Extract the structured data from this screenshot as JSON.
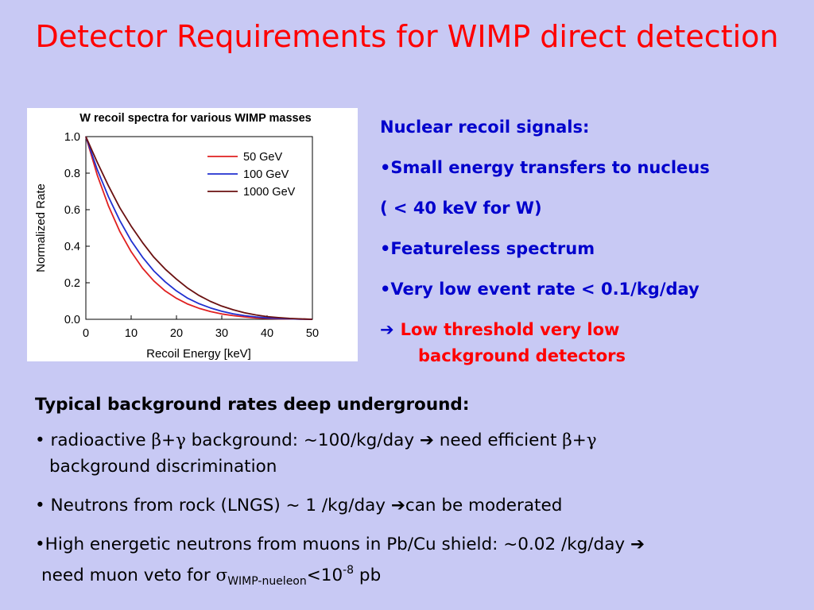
{
  "slide": {
    "title": "Detector Requirements for WIMP direct detection"
  },
  "right_panel": {
    "heading": "Nuclear recoil signals:",
    "bullets": [
      "•Small energy transfers to nucleus",
      "( < 40 keV for W)",
      "•Featureless spectrum",
      "•Very low event rate < 0.1/kg/day"
    ],
    "arrow_glyph": "➔",
    "conclusion_line1": "Low threshold  very low",
    "conclusion_line2": "background detectors"
  },
  "bottom": {
    "heading": "Typical background rates deep underground:",
    "b1_prefix": "• radioactive ",
    "beta": "β",
    "plus": "+",
    "gamma": "γ",
    "b1_mid": " background: ~100/kg/day  ",
    "arrow": "➔",
    "b1_need": " need efficient ",
    "b1_line2": "background discrimination",
    "b2_text": "• Neutrons from rock (LNGS) ~ 1 /kg/day  ",
    "b2_tail": "can be moderated",
    "b3_line1": "•High energetic neutrons from muons in Pb/Cu shield: ~0.02 /kg/day ",
    "b3_line2_prefix": "need muon veto for ",
    "sigma": "σ",
    "sigma_sub": "WIMP-nueleon",
    "lt_ten": "<10",
    "exp": "-8",
    "unit": " pb"
  },
  "colors": {
    "background": "#c8c9f4",
    "title": "#ff0000",
    "right_text": "#0000cc",
    "highlight": "#ff0000"
  },
  "chart_data": {
    "type": "line",
    "title": "W recoil spectra for various WIMP masses",
    "xlabel": "Recoil Energy [keV]",
    "ylabel": "Normalized Rate",
    "xlim": [
      0,
      50
    ],
    "ylim": [
      0,
      1.0
    ],
    "xticks": [
      0,
      10,
      20,
      30,
      40,
      50
    ],
    "yticks": [
      0.0,
      0.2,
      0.4,
      0.6,
      0.8,
      1.0
    ],
    "legend_position": "top-right",
    "x": [
      0,
      2.5,
      5,
      7.5,
      10,
      12.5,
      15,
      17.5,
      20,
      22.5,
      25,
      27.5,
      30,
      32.5,
      35,
      37.5,
      40,
      42.5,
      45,
      47.5,
      50
    ],
    "series": [
      {
        "name": "50 GeV",
        "color": "#e02020",
        "values": [
          1.0,
          0.79,
          0.62,
          0.48,
          0.37,
          0.28,
          0.21,
          0.155,
          0.115,
          0.083,
          0.06,
          0.042,
          0.029,
          0.02,
          0.013,
          0.008,
          0.005,
          0.003,
          0.002,
          0.001,
          0.0
        ]
      },
      {
        "name": "100 GeV",
        "color": "#2030d0",
        "values": [
          1.0,
          0.82,
          0.67,
          0.54,
          0.43,
          0.34,
          0.265,
          0.205,
          0.155,
          0.115,
          0.085,
          0.062,
          0.044,
          0.03,
          0.02,
          0.013,
          0.008,
          0.005,
          0.003,
          0.001,
          0.0
        ]
      },
      {
        "name": "1000 GeV",
        "color": "#6a1010",
        "values": [
          1.0,
          0.86,
          0.73,
          0.61,
          0.51,
          0.42,
          0.34,
          0.275,
          0.22,
          0.17,
          0.13,
          0.098,
          0.072,
          0.052,
          0.036,
          0.024,
          0.015,
          0.009,
          0.005,
          0.002,
          0.0
        ]
      }
    ]
  }
}
